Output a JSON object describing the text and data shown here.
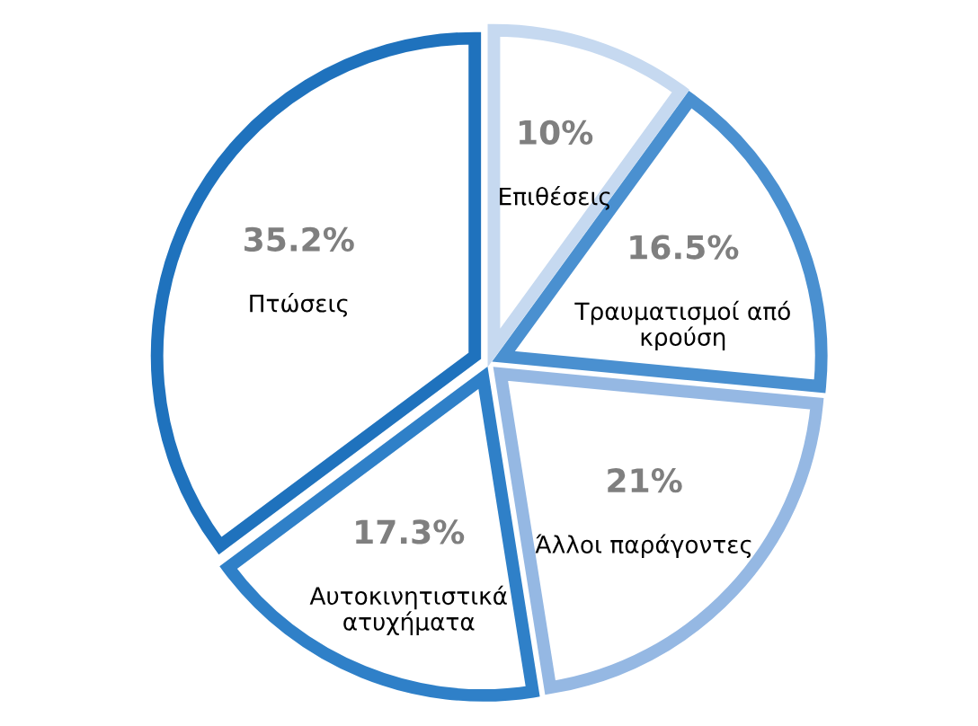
{
  "chart_data": {
    "type": "pie",
    "categories": [
      "Επιθέσεις",
      "Τραυματισμοί από\nκρούση",
      "Άλλοι παράγοντες",
      "Αυτοκινητιστικά\nατυχήματα",
      "Πτώσεις"
    ],
    "values": [
      10,
      16.5,
      21,
      17.3,
      35.2
    ],
    "value_labels": [
      "10%",
      "16.5%",
      "21%",
      "17.3%",
      "35.2%"
    ],
    "colors": [
      "#c6d9f0",
      "#4a90d0",
      "#95b8e3",
      "#2f80c8",
      "#1f72bd"
    ],
    "legend": false
  }
}
